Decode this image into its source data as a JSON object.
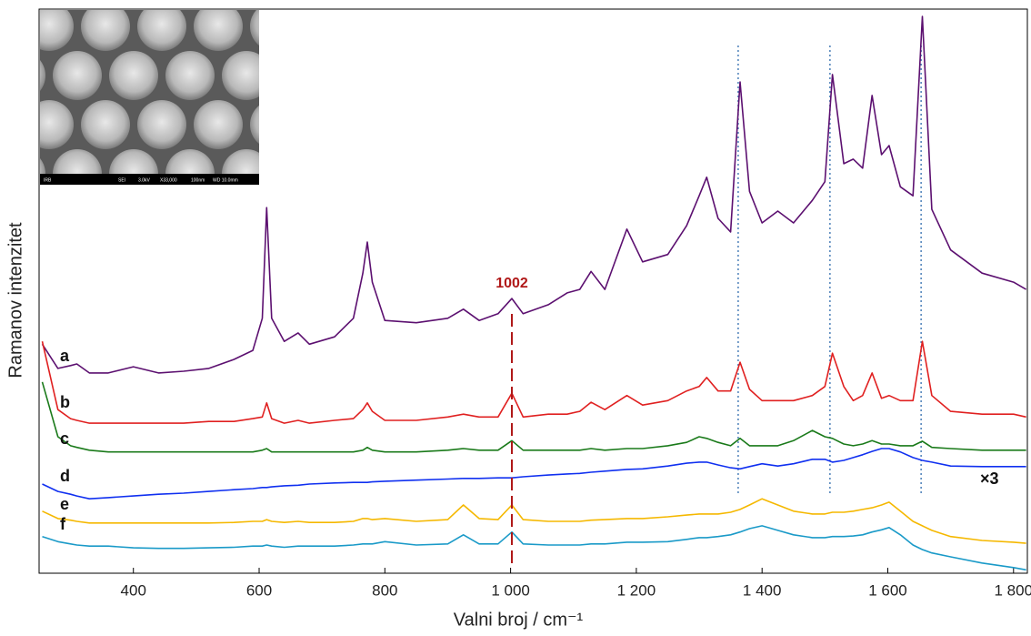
{
  "chart_data": {
    "type": "line",
    "x_label": "Valni broj / cm⁻¹",
    "y_label": "Ramanov intenzitet",
    "xlim": [
      250,
      1822
    ],
    "ylim": [
      0,
      100
    ],
    "xticks": [
      400,
      600,
      800,
      {
        "value": 1000,
        "label": "1 000"
      },
      {
        "value": 1200,
        "label": "1 200"
      },
      {
        "value": 1400,
        "label": "1 400"
      },
      {
        "value": 1600,
        "label": "1 600"
      },
      {
        "value": 1800,
        "label": "1 800"
      }
    ],
    "marker_x": 1002,
    "reference_x": [
      1362,
      1508,
      1653
    ],
    "annotation": "×3",
    "inset_labels": [
      "IRB",
      "SEI",
      "3.0kV",
      "X33,000",
      "100nm",
      "WD 10.0mm"
    ],
    "x": [
      255,
      280,
      300,
      310,
      330,
      360,
      400,
      440,
      480,
      520,
      560,
      590,
      605,
      612,
      620,
      640,
      662,
      680,
      720,
      750,
      765,
      772,
      780,
      800,
      850,
      900,
      925,
      950,
      980,
      1002,
      1020,
      1060,
      1090,
      1110,
      1128,
      1150,
      1185,
      1210,
      1250,
      1280,
      1300,
      1312,
      1330,
      1350,
      1365,
      1380,
      1400,
      1425,
      1450,
      1480,
      1500,
      1512,
      1530,
      1545,
      1560,
      1575,
      1590,
      1602,
      1620,
      1640,
      1655,
      1670,
      1700,
      1750,
      1800,
      1820
    ],
    "series": [
      {
        "name": "a",
        "color": "#5c1070",
        "values": [
          40.6,
          36.3,
          36.8,
          37.1,
          35.5,
          35.5,
          36.6,
          35.5,
          35.8,
          36.3,
          37.9,
          39.5,
          45.2,
          64.8,
          45.2,
          41.1,
          42.6,
          40.6,
          41.9,
          45.2,
          53.2,
          58.7,
          51.6,
          44.8,
          44.4,
          45.2,
          46.8,
          44.8,
          46.0,
          48.7,
          46.0,
          47.6,
          49.7,
          50.3,
          53.5,
          50.3,
          61.0,
          55.2,
          56.5,
          61.6,
          66.9,
          70.2,
          62.9,
          60.5,
          87.1,
          67.7,
          62.1,
          64.2,
          62.1,
          66.1,
          69.4,
          88.4,
          72.6,
          73.4,
          71.8,
          84.7,
          74.2,
          75.8,
          68.5,
          66.9,
          98.7,
          64.5,
          57.3,
          53.2,
          51.6,
          50.3
        ]
      },
      {
        "name": "b",
        "color": "#e02020",
        "values": [
          41.1,
          29.0,
          27.4,
          27.1,
          26.6,
          26.6,
          26.6,
          26.6,
          26.6,
          26.9,
          26.9,
          27.4,
          27.7,
          30.2,
          27.4,
          26.6,
          27.1,
          26.6,
          27.1,
          27.4,
          29.0,
          30.2,
          28.7,
          27.1,
          27.1,
          27.7,
          28.2,
          27.7,
          27.7,
          31.9,
          27.7,
          28.2,
          28.2,
          28.7,
          30.3,
          29.0,
          31.5,
          29.8,
          30.6,
          32.3,
          33.1,
          34.7,
          32.3,
          32.3,
          37.4,
          32.6,
          30.6,
          30.6,
          30.6,
          31.5,
          33.1,
          39.0,
          33.1,
          30.6,
          31.5,
          35.5,
          31.0,
          31.5,
          30.6,
          30.6,
          41.1,
          31.5,
          28.7,
          28.2,
          28.2,
          27.7
        ]
      },
      {
        "name": "c",
        "color": "#1a7a1a",
        "values": [
          33.9,
          24.2,
          22.6,
          22.3,
          21.8,
          21.5,
          21.5,
          21.5,
          21.5,
          21.5,
          21.5,
          21.5,
          21.8,
          22.1,
          21.5,
          21.5,
          21.5,
          21.5,
          21.5,
          21.5,
          21.8,
          22.3,
          21.8,
          21.5,
          21.5,
          21.8,
          22.1,
          21.8,
          21.8,
          23.5,
          21.8,
          21.8,
          21.8,
          21.8,
          22.1,
          21.8,
          22.1,
          22.1,
          22.6,
          23.2,
          24.2,
          23.9,
          23.2,
          22.6,
          23.9,
          22.6,
          22.6,
          22.6,
          23.5,
          25.3,
          24.2,
          23.9,
          22.9,
          22.6,
          22.9,
          23.5,
          22.9,
          22.9,
          22.6,
          22.6,
          23.4,
          22.3,
          22.1,
          21.8,
          21.8,
          21.8
        ]
      },
      {
        "name": "d",
        "color": "#1030f0",
        "values": [
          15.8,
          14.5,
          14.0,
          13.7,
          13.2,
          13.4,
          13.7,
          14.0,
          14.2,
          14.5,
          14.8,
          15.0,
          15.2,
          15.2,
          15.3,
          15.5,
          15.6,
          15.8,
          16.0,
          16.1,
          16.1,
          16.1,
          16.2,
          16.3,
          16.5,
          16.7,
          16.8,
          16.8,
          16.9,
          16.9,
          17.1,
          17.4,
          17.6,
          17.7,
          17.9,
          18.1,
          18.4,
          18.5,
          19.0,
          19.5,
          19.7,
          19.7,
          19.2,
          18.7,
          18.5,
          18.9,
          19.4,
          19.0,
          19.4,
          20.2,
          20.2,
          19.7,
          20.0,
          20.5,
          21.0,
          21.6,
          22.1,
          22.1,
          21.5,
          20.5,
          20.0,
          19.7,
          19.0,
          18.9,
          18.9,
          18.9
        ]
      },
      {
        "name": "e",
        "color": "#f5b800",
        "values": [
          11.0,
          9.7,
          9.4,
          9.2,
          8.9,
          8.9,
          8.9,
          8.9,
          8.9,
          8.9,
          9.0,
          9.2,
          9.2,
          9.5,
          9.2,
          9.0,
          9.2,
          9.0,
          9.0,
          9.2,
          9.7,
          9.7,
          9.5,
          9.7,
          9.2,
          9.5,
          12.1,
          9.7,
          9.5,
          12.1,
          9.5,
          9.2,
          9.2,
          9.2,
          9.4,
          9.5,
          9.7,
          9.7,
          10.0,
          10.3,
          10.5,
          10.5,
          10.5,
          10.8,
          11.3,
          12.1,
          13.2,
          12.1,
          11.0,
          10.5,
          10.5,
          10.8,
          10.8,
          11.0,
          11.3,
          11.6,
          12.1,
          12.6,
          11.0,
          9.2,
          8.4,
          7.6,
          6.5,
          5.8,
          5.5,
          5.3
        ]
      },
      {
        "name": "f",
        "color": "#1a9ac8",
        "values": [
          6.5,
          5.6,
          5.2,
          5.0,
          4.8,
          4.8,
          4.5,
          4.4,
          4.4,
          4.5,
          4.6,
          4.8,
          4.8,
          5.0,
          4.8,
          4.6,
          4.8,
          4.8,
          4.8,
          5.0,
          5.2,
          5.2,
          5.2,
          5.6,
          5.0,
          5.2,
          6.8,
          5.2,
          5.2,
          7.3,
          5.2,
          5.0,
          5.0,
          5.0,
          5.2,
          5.2,
          5.5,
          5.5,
          5.6,
          6.0,
          6.3,
          6.3,
          6.5,
          6.8,
          7.3,
          7.9,
          8.4,
          7.6,
          6.8,
          6.3,
          6.3,
          6.5,
          6.5,
          6.6,
          6.8,
          7.3,
          7.7,
          8.1,
          6.8,
          5.0,
          4.2,
          3.6,
          2.9,
          1.8,
          1.0,
          0.6
        ]
      }
    ]
  }
}
